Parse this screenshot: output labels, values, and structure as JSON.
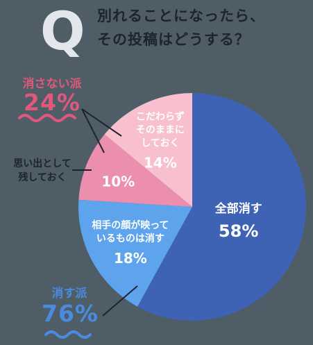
{
  "question": {
    "letter": "Q",
    "lines": [
      "別れることになったら、",
      "その投稿はどうする？"
    ]
  },
  "groups": {
    "keep": {
      "title": "消さない派",
      "percent": "24%"
    },
    "delete": {
      "title": "消す派",
      "percent": "76%"
    }
  },
  "side_label": [
    "思い出として",
    "残しておく"
  ],
  "chart_data": {
    "type": "pie",
    "slices": [
      {
        "label": [
          "全部消す"
        ],
        "value": 58,
        "display": "58%",
        "color": "#3f63b4",
        "text_color": "#ffffff"
      },
      {
        "label": [
          "相手の顔が映って",
          "いるものは消す"
        ],
        "value": 18,
        "display": "18%",
        "color": "#5ea4ec",
        "text_color": "#ffffff"
      },
      {
        "label": [],
        "value": 10,
        "display": "10%",
        "color": "#ec8fae",
        "text_color": "#ffffff"
      },
      {
        "label": [
          "こだわらず",
          "そのままに",
          "しておく"
        ],
        "value": 14,
        "display": "14%",
        "color": "#f8bfcf",
        "text_color": "#ffffff"
      }
    ],
    "start_angle_deg": 0,
    "direction": "clockwise",
    "colors": {
      "delete_group": "#4a8be0",
      "keep_group": "#e0587b"
    }
  }
}
